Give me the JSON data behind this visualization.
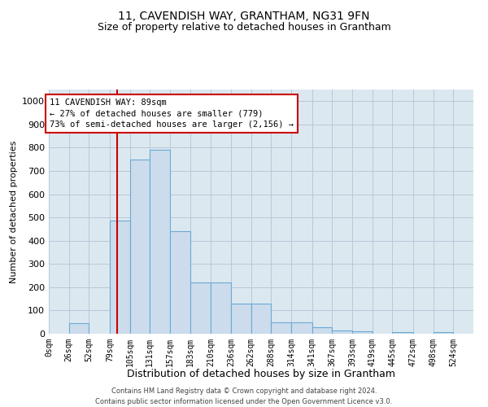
{
  "title": "11, CAVENDISH WAY, GRANTHAM, NG31 9FN",
  "subtitle": "Size of property relative to detached houses in Grantham",
  "xlabel": "Distribution of detached houses by size in Grantham",
  "ylabel": "Number of detached properties",
  "footer_line1": "Contains HM Land Registry data © Crown copyright and database right 2024.",
  "footer_line2": "Contains public sector information licensed under the Open Government Licence v3.0.",
  "bin_labels": [
    "0sqm",
    "26sqm",
    "52sqm",
    "79sqm",
    "105sqm",
    "131sqm",
    "157sqm",
    "183sqm",
    "210sqm",
    "236sqm",
    "262sqm",
    "288sqm",
    "314sqm",
    "341sqm",
    "367sqm",
    "393sqm",
    "419sqm",
    "445sqm",
    "472sqm",
    "498sqm",
    "524sqm"
  ],
  "bar_values": [
    0,
    45,
    0,
    485,
    750,
    790,
    440,
    220,
    220,
    130,
    130,
    50,
    50,
    28,
    15,
    12,
    0,
    7,
    0,
    8,
    0
  ],
  "bar_color": "#ccdcec",
  "bar_edge_color": "#6aaad4",
  "bin_edges": [
    0,
    26,
    52,
    79,
    105,
    131,
    157,
    183,
    210,
    236,
    262,
    288,
    314,
    341,
    367,
    393,
    419,
    445,
    472,
    498,
    524,
    550
  ],
  "red_line_x": 89,
  "annotation_line1": "11 CAVENDISH WAY: 89sqm",
  "annotation_line2": "← 27% of detached houses are smaller (779)",
  "annotation_line3": "73% of semi-detached houses are larger (2,156) →",
  "annotation_box_color": "#cc0000",
  "ylim": [
    0,
    1050
  ],
  "yticks": [
    0,
    100,
    200,
    300,
    400,
    500,
    600,
    700,
    800,
    900,
    1000
  ],
  "grid_color": "#b8c8d8",
  "background_color": "#dce8f0",
  "title_fontsize": 10,
  "subtitle_fontsize": 9,
  "axis_label_fontsize": 8,
  "tick_fontsize": 7,
  "footer_fontsize": 6
}
